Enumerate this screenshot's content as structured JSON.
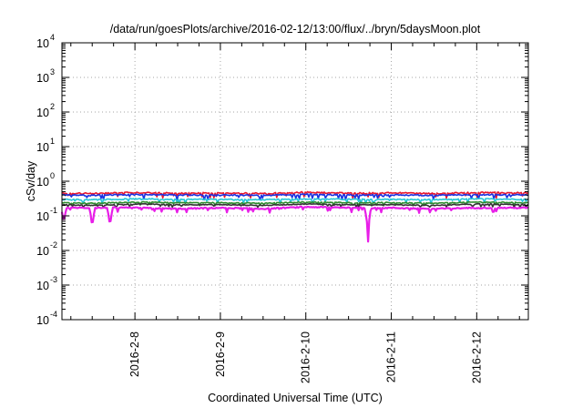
{
  "chart_data": {
    "type": "line",
    "title": "/data/run/goesPlots/archive/2016-02-12/13:00/flux/../bryn/5daysMoon.plot",
    "xlabel": "Coordinated Universal Time (UTC)",
    "ylabel": "cSv/day",
    "y_scale": "log",
    "ylim": [
      0.0001,
      10000
    ],
    "y_ticks": [
      {
        "base": "10",
        "exp": "-4",
        "value": 0.0001
      },
      {
        "base": "10",
        "exp": "-3",
        "value": 0.001
      },
      {
        "base": "10",
        "exp": "-2",
        "value": 0.01
      },
      {
        "base": "10",
        "exp": "-1",
        "value": 0.1
      },
      {
        "base": "10",
        "exp": "0",
        "value": 1
      },
      {
        "base": "10",
        "exp": "1",
        "value": 10
      },
      {
        "base": "10",
        "exp": "2",
        "value": 100
      },
      {
        "base": "10",
        "exp": "3",
        "value": 1000
      },
      {
        "base": "10",
        "exp": "4",
        "value": 10000
      }
    ],
    "x_range": [
      "2016-02-07 03:30",
      "2016-02-12 14:30"
    ],
    "x_ticks": [
      "2016-2-8",
      "2016-2-9",
      "2016-2-10",
      "2016-2-11",
      "2016-2-12"
    ],
    "grid": true,
    "series": [
      {
        "color": "#e8162e",
        "level": 0.45,
        "noise": 0.26,
        "spikes": [],
        "points": [
          [
            "2016-02-07 04:00",
            0.46
          ],
          [
            "2016-02-07 12:00",
            0.44
          ],
          [
            "2016-02-08 00:00",
            0.47
          ],
          [
            "2016-02-08 12:00",
            0.45
          ],
          [
            "2016-02-09 00:00",
            0.46
          ],
          [
            "2016-02-09 12:00",
            0.44
          ],
          [
            "2016-02-10 00:00",
            0.48
          ],
          [
            "2016-02-10 12:00",
            0.45
          ],
          [
            "2016-02-11 00:00",
            0.46
          ],
          [
            "2016-02-11 12:00",
            0.44
          ],
          [
            "2016-02-12 00:00",
            0.47
          ],
          [
            "2016-02-12 14:00",
            0.46
          ]
        ]
      },
      {
        "color": "#1a32e0",
        "level": 0.4,
        "noise": 0.24,
        "spikes": [],
        "points": [
          [
            "2016-02-07 04:00",
            0.4
          ],
          [
            "2016-02-07 12:00",
            0.39
          ],
          [
            "2016-02-08 00:00",
            0.41
          ],
          [
            "2016-02-08 12:00",
            0.4
          ],
          [
            "2016-02-09 00:00",
            0.4
          ],
          [
            "2016-02-09 12:00",
            0.39
          ],
          [
            "2016-02-10 00:00",
            0.42
          ],
          [
            "2016-02-10 12:00",
            0.4
          ],
          [
            "2016-02-11 00:00",
            0.4
          ],
          [
            "2016-02-11 12:00",
            0.39
          ],
          [
            "2016-02-12 00:00",
            0.41
          ],
          [
            "2016-02-12 14:00",
            0.4
          ]
        ]
      },
      {
        "color": "#26c6d8",
        "level": 0.3,
        "noise": 0.2,
        "spikes": [],
        "points": [
          [
            "2016-02-07 04:00",
            0.3
          ],
          [
            "2016-02-07 12:00",
            0.29
          ],
          [
            "2016-02-08 00:00",
            0.31
          ],
          [
            "2016-02-08 12:00",
            0.3
          ],
          [
            "2016-02-09 00:00",
            0.3
          ],
          [
            "2016-02-09 12:00",
            0.29
          ],
          [
            "2016-02-10 00:00",
            0.31
          ],
          [
            "2016-02-10 12:00",
            0.3
          ],
          [
            "2016-02-11 00:00",
            0.3
          ],
          [
            "2016-02-11 12:00",
            0.29
          ],
          [
            "2016-02-12 00:00",
            0.31
          ],
          [
            "2016-02-12 14:00",
            0.3
          ]
        ]
      },
      {
        "color": "#2e8b2e",
        "level": 0.24,
        "noise": 0.16,
        "spikes": [],
        "points": [
          [
            "2016-02-07 04:00",
            0.24
          ],
          [
            "2016-02-07 12:00",
            0.23
          ],
          [
            "2016-02-08 00:00",
            0.25
          ],
          [
            "2016-02-08 12:00",
            0.24
          ],
          [
            "2016-02-09 00:00",
            0.24
          ],
          [
            "2016-02-09 12:00",
            0.23
          ],
          [
            "2016-02-10 00:00",
            0.25
          ],
          [
            "2016-02-10 12:00",
            0.24
          ],
          [
            "2016-02-11 00:00",
            0.24
          ],
          [
            "2016-02-11 12:00",
            0.23
          ],
          [
            "2016-02-12 00:00",
            0.25
          ],
          [
            "2016-02-12 14:00",
            0.24
          ]
        ]
      },
      {
        "color": "#333333",
        "level": 0.21,
        "noise": 0.14,
        "spikes": [],
        "points": [
          [
            "2016-02-07 04:00",
            0.21
          ],
          [
            "2016-02-07 12:00",
            0.2
          ],
          [
            "2016-02-08 00:00",
            0.22
          ],
          [
            "2016-02-08 12:00",
            0.21
          ],
          [
            "2016-02-09 00:00",
            0.21
          ],
          [
            "2016-02-09 12:00",
            0.2
          ],
          [
            "2016-02-10 00:00",
            0.22
          ],
          [
            "2016-02-10 12:00",
            0.21
          ],
          [
            "2016-02-11 00:00",
            0.21
          ],
          [
            "2016-02-11 12:00",
            0.2
          ],
          [
            "2016-02-12 00:00",
            0.22
          ],
          [
            "2016-02-12 14:00",
            0.21
          ]
        ]
      },
      {
        "color": "#e81ee8",
        "level": 0.17,
        "noise": 0.22,
        "spikes": [
          [
            "2016-02-07 04:00",
            0.06
          ],
          [
            "2016-02-07 12:00",
            0.04
          ],
          [
            "2016-02-07 17:00",
            0.045
          ],
          [
            "2016-02-10 17:30",
            0.018
          ]
        ],
        "points": [
          [
            "2016-02-07 04:00",
            0.06
          ],
          [
            "2016-02-07 12:00",
            0.04
          ],
          [
            "2016-02-08 00:00",
            0.17
          ],
          [
            "2016-02-08 12:00",
            0.16
          ],
          [
            "2016-02-09 00:00",
            0.17
          ],
          [
            "2016-02-09 12:00",
            0.16
          ],
          [
            "2016-02-10 00:00",
            0.18
          ],
          [
            "2016-02-10 17:30",
            0.018
          ],
          [
            "2016-02-11 00:00",
            0.17
          ],
          [
            "2016-02-11 12:00",
            0.16
          ],
          [
            "2016-02-12 00:00",
            0.17
          ],
          [
            "2016-02-12 14:00",
            0.17
          ]
        ]
      }
    ]
  }
}
